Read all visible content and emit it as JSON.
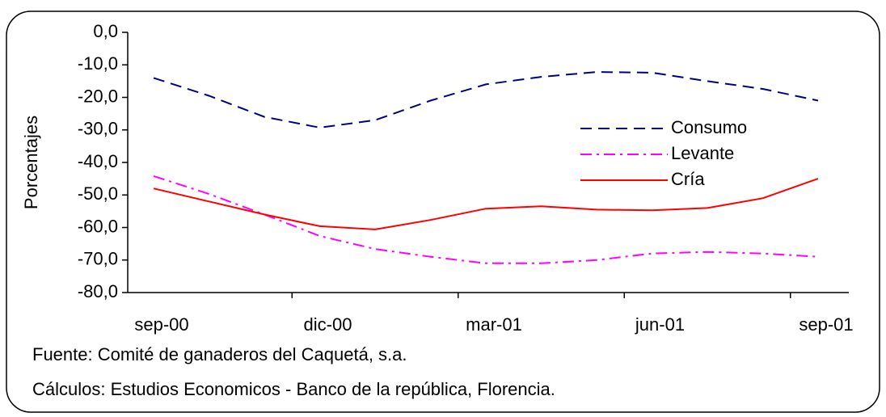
{
  "chart_data": {
    "type": "line",
    "y_label": "Porcentajes",
    "categories": [
      "sep-00",
      null,
      null,
      "dic-00",
      null,
      null,
      "mar-01",
      null,
      null,
      "jun-01",
      null,
      null,
      "sep-01"
    ],
    "series": [
      {
        "name": "Consumo",
        "color": "#000080",
        "dash": "14,8",
        "values": [
          -14,
          -19.5,
          -26,
          -29.3,
          -27,
          -21,
          -16,
          -13.7,
          -12.2,
          -12.4,
          -15,
          -17.4,
          -21
        ]
      },
      {
        "name": "Levante",
        "color": "#ff00ff",
        "dash": "14,6,3,6",
        "values": [
          -44.2,
          -49.7,
          -56,
          -62.6,
          -66.6,
          -69,
          -71,
          -71,
          -70,
          -68,
          -67.5,
          -68,
          -69
        ]
      },
      {
        "name": "Cría",
        "color": "#ff0000",
        "dash": "none",
        "values": [
          -48,
          -52,
          -56,
          -59.6,
          -60.6,
          -57.7,
          -54.2,
          -53.5,
          -54.5,
          -54.7,
          -54,
          -51,
          -45
        ]
      }
    ],
    "ylim": [
      -80,
      0
    ],
    "yticks": [
      {
        "value": 0,
        "label": "0,0"
      },
      {
        "value": -10,
        "label": "-10,0"
      },
      {
        "value": -20,
        "label": "-20,0"
      },
      {
        "value": -30,
        "label": "-30,0"
      },
      {
        "value": -40,
        "label": "-40,0"
      },
      {
        "value": -50,
        "label": "-50,0"
      },
      {
        "value": -60,
        "label": "-60,0"
      },
      {
        "value": -70,
        "label": "-70,0"
      },
      {
        "value": -80,
        "label": "-80,0"
      }
    ],
    "grid": false,
    "legend": "right",
    "notes": [
      "Fuente: Comité de ganaderos del Caquetá, s.a.",
      "Cálculos: Estudios Economicos - Banco de la república, Florencia."
    ]
  }
}
